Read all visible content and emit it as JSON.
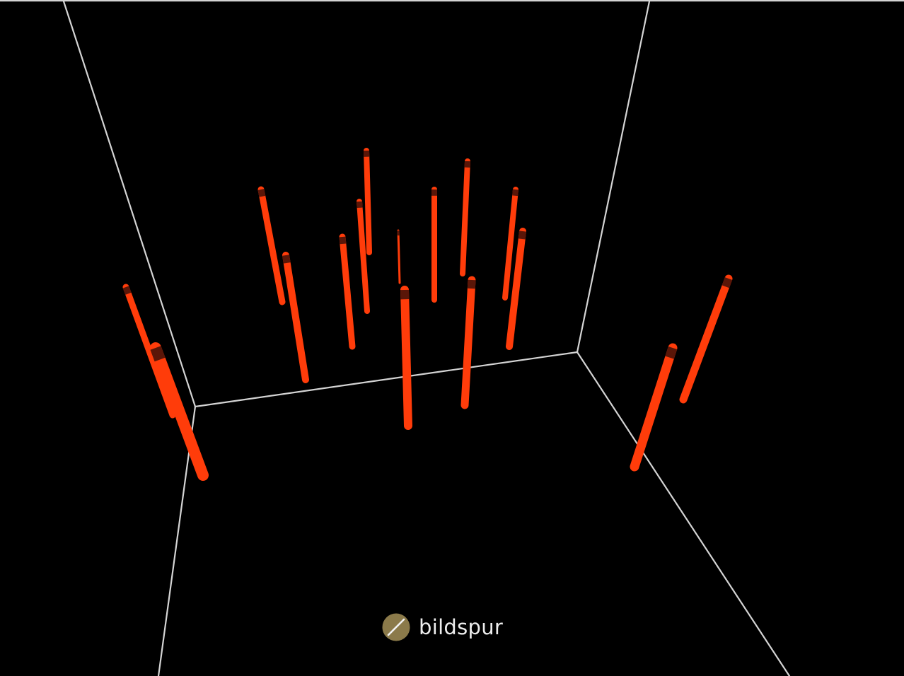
{
  "brand": {
    "name": "bildspur",
    "mark_icon": "circle-slash-logo-icon",
    "mark_color": "#8b7a4a",
    "text_color": "#ededed"
  },
  "scene": {
    "background_color": "#000000",
    "frame_color": "#d4d4d4",
    "rod_color": "#ff3c0a",
    "rod_cap_color": "#5a1608",
    "rod_count": 18
  }
}
